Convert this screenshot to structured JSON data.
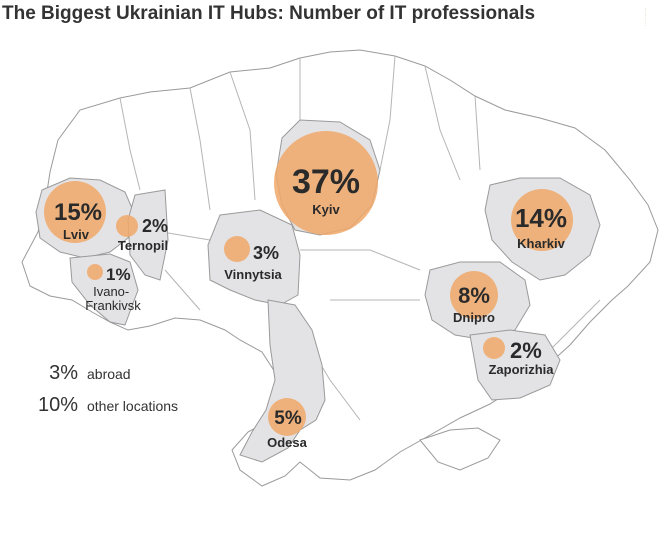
{
  "title": "The Biggest Ukrainian IT Hubs: Number of IT professionals",
  "colors": {
    "bubble": "#f0a868",
    "region_highlight": "#e3e3e5",
    "region_border": "#9a9a9a",
    "text": "#2a2a2a"
  },
  "hubs": [
    {
      "city": "Kyiv",
      "percent": 37,
      "label": "37%"
    },
    {
      "city": "Lviv",
      "percent": 15,
      "label": "15%"
    },
    {
      "city": "Kharkiv",
      "percent": 14,
      "label": "14%"
    },
    {
      "city": "Dnipro",
      "percent": 8,
      "label": "8%"
    },
    {
      "city": "Odesa",
      "percent": 5,
      "label": "5%"
    },
    {
      "city": "Vinnytsia",
      "percent": 3,
      "label": "3%"
    },
    {
      "city": "Ternopil",
      "percent": 2,
      "label": "2%"
    },
    {
      "city": "Zaporizhia",
      "percent": 2,
      "label": "2%"
    },
    {
      "city": "Ivano-\nFrankivsk",
      "percent": 1,
      "label": "1%"
    }
  ],
  "legend": [
    {
      "value": "3%",
      "label": "abroad"
    },
    {
      "value": "10%",
      "label": "other locations"
    }
  ]
}
